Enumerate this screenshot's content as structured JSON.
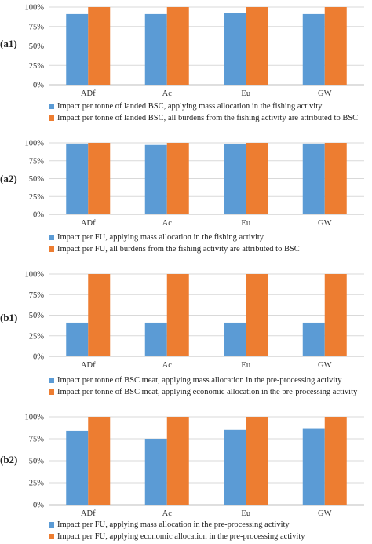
{
  "colors": {
    "series1": "#5b9bd5",
    "series2": "#ed7d31",
    "grid": "#d9d9d9",
    "axis": "#bfbfbf"
  },
  "chart_data": [
    {
      "type": "bar",
      "panel": "(a1)",
      "categories": [
        "ADf",
        "Ac",
        "Eu",
        "GW"
      ],
      "yticks": [
        "0%",
        "25%",
        "50%",
        "75%",
        "100%"
      ],
      "ylim": [
        0,
        100
      ],
      "series": [
        {
          "name": "Impact per tonne of landed BSC, applying mass allocation in the fishing activity",
          "values": [
            91,
            91,
            92,
            91
          ]
        },
        {
          "name": "Impact per tonne of landed BSC, all burdens from the fishing activity are attributed to BSC",
          "values": [
            100,
            100,
            100,
            100
          ]
        }
      ]
    },
    {
      "type": "bar",
      "panel": "(a2)",
      "categories": [
        "ADf",
        "Ac",
        "Eu",
        "GW"
      ],
      "yticks": [
        "0%",
        "25%",
        "50%",
        "75%",
        "100%"
      ],
      "ylim": [
        0,
        100
      ],
      "series": [
        {
          "name": "Impact per FU, applying mass allocation in the fishing activity",
          "values": [
            99,
            97,
            98,
            99
          ]
        },
        {
          "name": "Impact per FU, all burdens from the fishing activity are attributed to BSC",
          "values": [
            100,
            100,
            100,
            100
          ]
        }
      ]
    },
    {
      "type": "bar",
      "panel": "(b1)",
      "categories": [
        "ADf",
        "Ac",
        "Eu",
        "GW"
      ],
      "yticks": [
        "0%",
        "25%",
        "50%",
        "75%",
        "100%"
      ],
      "ylim": [
        0,
        100
      ],
      "series": [
        {
          "name": "Impact per tonne of BSC meat, applying mass allocation in the pre-processing activity",
          "values": [
            41,
            41,
            41,
            41
          ]
        },
        {
          "name": "Impact per tonne of BSC meat, applying economic allocation in the pre-processing activity",
          "values": [
            100,
            100,
            100,
            100
          ]
        }
      ]
    },
    {
      "type": "bar",
      "panel": "(b2)",
      "categories": [
        "ADf",
        "Ac",
        "Eu",
        "GW"
      ],
      "yticks": [
        "0%",
        "25%",
        "50%",
        "75%",
        "100%"
      ],
      "ylim": [
        0,
        100
      ],
      "series": [
        {
          "name": "Impact per FU, applying mass allocation in the pre-processing activity",
          "values": [
            84,
            75,
            85,
            87
          ]
        },
        {
          "name": "Impact per FU, applying economic allocation in the pre-processing activity",
          "values": [
            100,
            100,
            100,
            100
          ]
        }
      ]
    }
  ]
}
